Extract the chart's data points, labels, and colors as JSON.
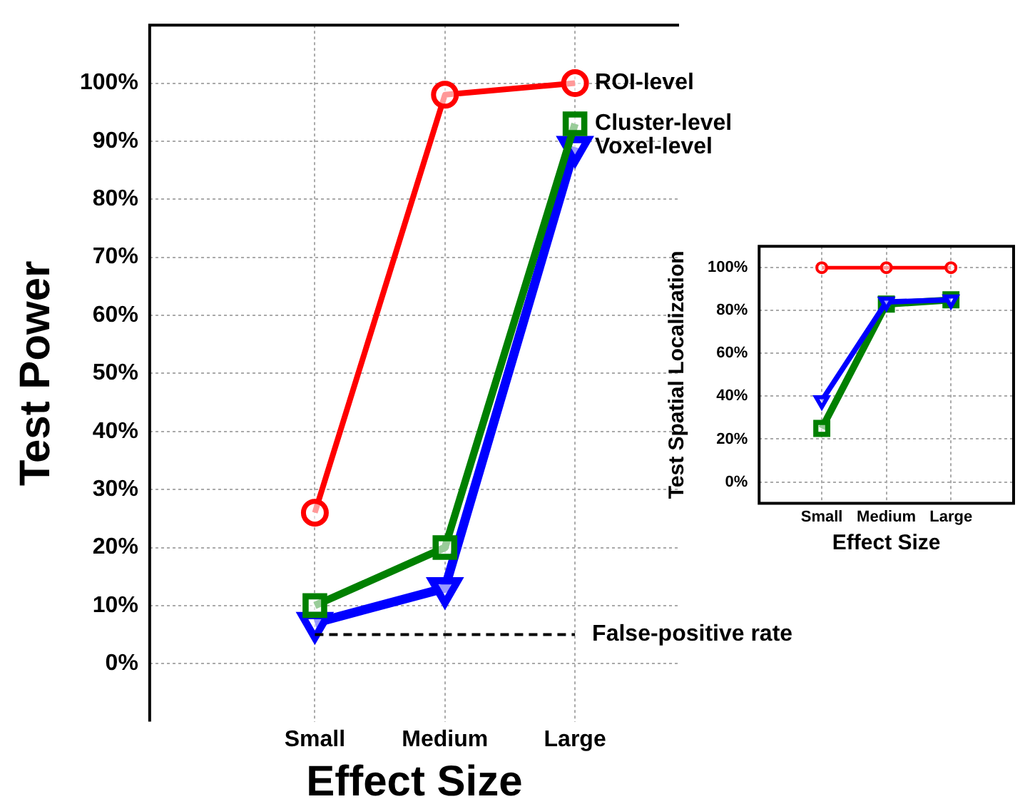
{
  "chart_data": [
    {
      "type": "line",
      "xlabel": "Effect Size",
      "ylabel": "Test Power",
      "categories": [
        "Small",
        "Medium",
        "Large"
      ],
      "series": [
        {
          "name": "ROI-level",
          "color": "#ff0000",
          "marker": "circle",
          "values": [
            26,
            98,
            100
          ]
        },
        {
          "name": "Cluster-level",
          "color": "#008000",
          "marker": "square",
          "values": [
            10,
            20,
            93
          ]
        },
        {
          "name": "Voxel-level",
          "color": "#0000ff",
          "marker": "triangle",
          "values": [
            7,
            13,
            89
          ]
        }
      ],
      "ylim": [
        -10,
        110
      ],
      "yticks": [
        {
          "value": 0,
          "label": "0%"
        },
        {
          "value": 10,
          "label": "10%"
        },
        {
          "value": 20,
          "label": "20%"
        },
        {
          "value": 30,
          "label": "30%"
        },
        {
          "value": 40,
          "label": "40%"
        },
        {
          "value": 50,
          "label": "50%"
        },
        {
          "value": 60,
          "label": "60%"
        },
        {
          "value": 70,
          "label": "70%"
        },
        {
          "value": 80,
          "label": "80%"
        },
        {
          "value": 90,
          "label": "90%"
        },
        {
          "value": 100,
          "label": "100%"
        }
      ],
      "ref_lines": [
        {
          "axis": "y",
          "value": 5,
          "label": "False-positive rate",
          "color": "#000000",
          "line_style": "dashed"
        }
      ],
      "grid": true,
      "legend": false
    },
    {
      "type": "line",
      "xlabel": "Effect Size",
      "ylabel": "Test Spatial Localization",
      "categories": [
        "Small",
        "Medium",
        "Large"
      ],
      "series": [
        {
          "color": "#ff0000",
          "marker": "circle",
          "values": [
            100,
            100,
            100
          ]
        },
        {
          "color": "#0000ff",
          "marker": "triangle",
          "values": [
            38,
            84,
            85
          ]
        },
        {
          "color": "#008000",
          "marker": "square",
          "values": [
            25,
            83,
            85
          ]
        }
      ],
      "ylim": [
        -10,
        110
      ],
      "yticks": [
        {
          "value": 0,
          "label": "0%"
        },
        {
          "value": 20,
          "label": "20%"
        },
        {
          "value": 40,
          "label": "40%"
        },
        {
          "value": 60,
          "label": "60%"
        },
        {
          "value": 80,
          "label": "80%"
        },
        {
          "value": 100,
          "label": "100%"
        }
      ],
      "grid": true,
      "legend": false
    }
  ]
}
